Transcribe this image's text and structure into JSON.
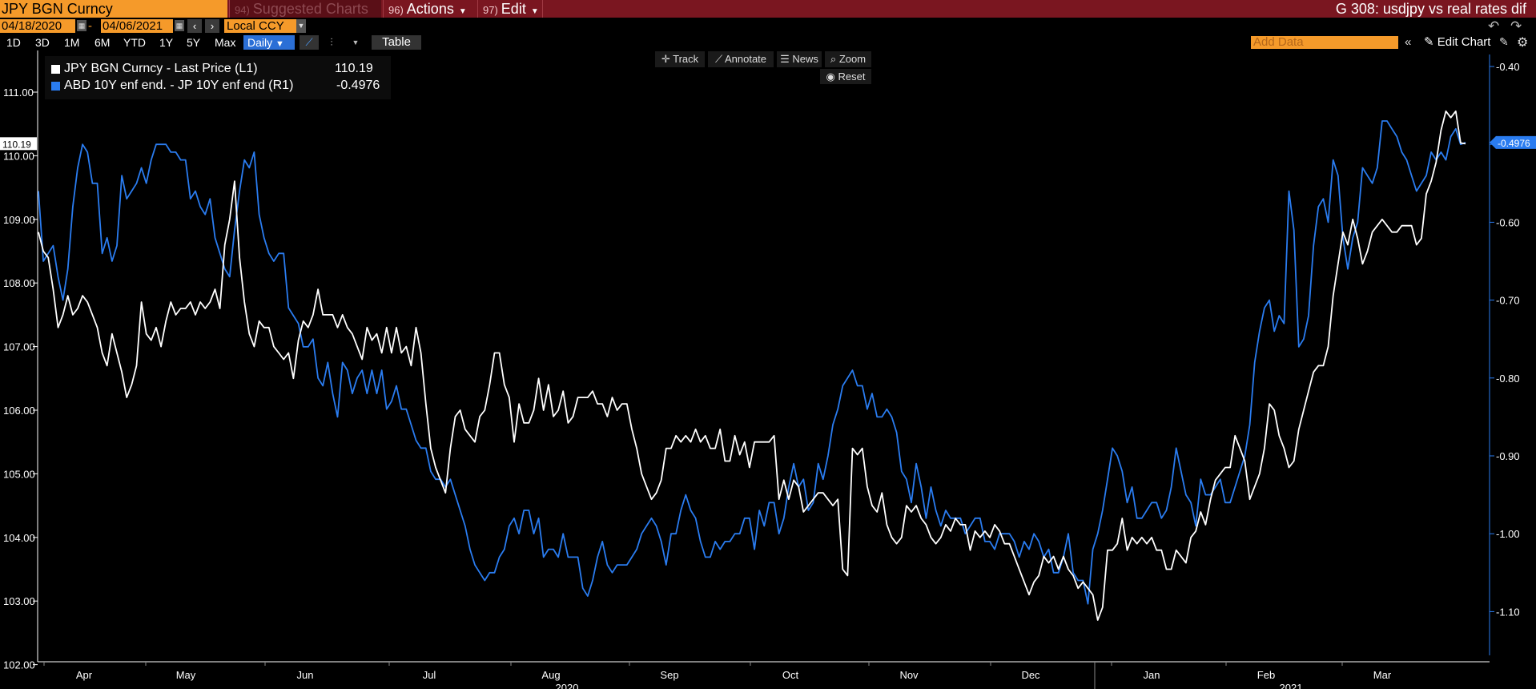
{
  "titlebar": {
    "ticker": "JPY BGN Curncy",
    "suggested": {
      "num": "94)",
      "label": "Suggested Charts"
    },
    "actions": {
      "num": "96)",
      "label": "Actions"
    },
    "edit": {
      "num": "97)",
      "label": "Edit"
    },
    "chart_title": "G 308: usdjpy vs real rates dif"
  },
  "daterow": {
    "start_date": "04/18/2020",
    "end_date": "04/06/2021",
    "currency": "Local CCY"
  },
  "toolbar": {
    "periods": [
      "1D",
      "3D",
      "1M",
      "6M",
      "YTD",
      "1Y",
      "5Y",
      "Max"
    ],
    "frequency": "Daily",
    "table_label": "Table",
    "add_data_placeholder": "Add Data",
    "edit_chart_label": "Edit Chart"
  },
  "chart_tools": {
    "track": "Track",
    "annotate": "Annotate",
    "news": "News",
    "zoom": "Zoom",
    "reset": "Reset"
  },
  "colors": {
    "series1": "#ffffff",
    "series2": "#2a7cf0",
    "background": "#000000",
    "accent_orange": "#f59a2a",
    "titlebar": "#7a1620"
  },
  "chart_data": {
    "type": "line",
    "legend_position": "top-left",
    "grid": false,
    "x_tick_labels": [
      "Apr",
      "May",
      "Jun",
      "Jul",
      "Aug",
      "Sep",
      "Oct",
      "Nov",
      "Dec",
      "Jan",
      "Feb",
      "Mar"
    ],
    "year_labels": [
      {
        "label": "2020",
        "after_month": "Aug"
      },
      {
        "label": "2021",
        "after_month": "Feb"
      }
    ],
    "left_axis": {
      "ylim": [
        102.0,
        111.0
      ],
      "ticks": [
        "102.00",
        "103.00",
        "104.00",
        "105.00",
        "106.00",
        "107.00",
        "108.00",
        "109.00",
        "110.00",
        "111.00"
      ]
    },
    "right_axis": {
      "ylim": [
        -1.155,
        -0.395
      ],
      "ticks": [
        "-1.10",
        "-1.00",
        "-0.90",
        "-0.80",
        "-0.70",
        "-0.60",
        "-0.50",
        "-0.40"
      ]
    },
    "series": [
      {
        "name": "JPY BGN Curncy - Last Price (L1)",
        "axis": "left",
        "last_value": "110.19",
        "last_label": "110.19",
        "values": [
          108.8,
          108.5,
          108.4,
          107.9,
          107.3,
          107.5,
          107.8,
          107.5,
          107.6,
          107.8,
          107.7,
          107.5,
          107.3,
          106.9,
          106.7,
          107.2,
          106.9,
          106.6,
          106.2,
          106.4,
          106.7,
          107.7,
          107.2,
          107.1,
          107.3,
          107.0,
          107.4,
          107.7,
          107.5,
          107.6,
          107.6,
          107.7,
          107.5,
          107.7,
          107.6,
          107.7,
          107.9,
          107.6,
          108.6,
          109.0,
          109.6,
          108.4,
          107.7,
          107.2,
          107.0,
          107.4,
          107.3,
          107.3,
          107.0,
          106.9,
          106.8,
          106.9,
          106.5,
          107.1,
          107.4,
          107.3,
          107.5,
          107.9,
          107.5,
          107.5,
          107.5,
          107.3,
          107.5,
          107.3,
          107.2,
          107.0,
          106.8,
          107.3,
          107.1,
          107.2,
          106.9,
          107.3,
          106.9,
          107.3,
          106.9,
          107.0,
          106.7,
          107.3,
          106.9,
          106.1,
          105.4,
          105.1,
          104.9,
          104.7,
          105.4,
          105.9,
          106.0,
          105.7,
          105.6,
          105.5,
          105.9,
          106.0,
          106.4,
          106.9,
          106.9,
          106.4,
          106.2,
          105.5,
          106.1,
          105.8,
          105.8,
          106.0,
          106.5,
          106.0,
          106.4,
          105.9,
          106.0,
          106.3,
          105.8,
          105.9,
          106.2,
          106.2,
          106.2,
          106.3,
          106.1,
          106.1,
          105.9,
          106.2,
          106.0,
          106.1,
          106.1,
          105.7,
          105.4,
          105.0,
          104.8,
          104.6,
          104.7,
          104.9,
          105.4,
          105.4,
          105.6,
          105.5,
          105.6,
          105.5,
          105.7,
          105.5,
          105.6,
          105.4,
          105.4,
          105.7,
          105.2,
          105.2,
          105.6,
          105.3,
          105.5,
          105.1,
          105.5,
          105.5,
          105.5,
          105.5,
          105.6,
          104.6,
          104.9,
          104.6,
          104.9,
          104.8,
          104.4,
          104.5,
          104.6,
          104.7,
          104.7,
          104.6,
          104.5,
          104.6,
          103.5,
          103.4,
          105.4,
          105.3,
          105.4,
          104.8,
          104.5,
          104.4,
          104.7,
          104.2,
          104.0,
          103.9,
          104.0,
          104.5,
          104.4,
          104.5,
          104.3,
          104.2,
          104.0,
          103.9,
          104.0,
          104.2,
          104.1,
          104.3,
          104.2,
          104.2,
          103.8,
          104.1,
          104.0,
          104.1,
          104.0,
          104.2,
          104.1,
          103.9,
          103.9,
          103.7,
          103.5,
          103.3,
          103.1,
          103.3,
          103.4,
          103.7,
          103.6,
          103.7,
          103.5,
          103.7,
          103.5,
          103.4,
          103.2,
          103.3,
          103.2,
          103.1,
          102.7,
          102.9,
          103.8,
          103.8,
          103.9,
          104.3,
          103.8,
          104.0,
          103.9,
          104.0,
          103.9,
          104.0,
          103.8,
          103.8,
          103.5,
          103.5,
          103.8,
          103.7,
          103.6,
          104.0,
          104.1,
          104.4,
          104.2,
          104.6,
          104.9,
          105.0,
          105.1,
          105.1,
          105.6,
          105.4,
          105.2,
          104.6,
          104.8,
          105.0,
          105.4,
          106.1,
          106.0,
          105.6,
          105.4,
          105.1,
          105.2,
          105.7,
          106.0,
          106.3,
          106.6,
          106.7,
          106.7,
          107.0,
          107.8,
          108.3,
          108.8,
          108.6,
          109.0,
          108.7,
          108.3,
          108.5,
          108.8,
          108.9,
          109.0,
          108.9,
          108.8,
          108.8,
          108.9,
          108.9,
          108.9,
          108.6,
          108.7,
          109.4,
          109.6,
          109.9,
          110.4,
          110.7,
          110.6,
          110.7,
          110.2,
          110.19
        ]
      },
      {
        "name": "ABD 10Y enf end. - JP 10Y enf end (R1)",
        "axis": "right",
        "last_value": "-0.4976",
        "last_label": "-0.4976",
        "values": [
          -0.56,
          -0.65,
          -0.64,
          -0.63,
          -0.67,
          -0.7,
          -0.66,
          -0.58,
          -0.53,
          -0.5,
          -0.51,
          -0.55,
          -0.55,
          -0.64,
          -0.62,
          -0.65,
          -0.63,
          -0.54,
          -0.57,
          -0.56,
          -0.55,
          -0.53,
          -0.55,
          -0.52,
          -0.5,
          -0.5,
          -0.5,
          -0.51,
          -0.51,
          -0.52,
          -0.52,
          -0.57,
          -0.56,
          -0.58,
          -0.59,
          -0.57,
          -0.62,
          -0.64,
          -0.66,
          -0.67,
          -0.61,
          -0.56,
          -0.52,
          -0.53,
          -0.51,
          -0.59,
          -0.62,
          -0.64,
          -0.65,
          -0.64,
          -0.64,
          -0.71,
          -0.72,
          -0.73,
          -0.76,
          -0.76,
          -0.75,
          -0.8,
          -0.81,
          -0.78,
          -0.82,
          -0.85,
          -0.78,
          -0.79,
          -0.82,
          -0.8,
          -0.79,
          -0.82,
          -0.79,
          -0.82,
          -0.79,
          -0.84,
          -0.83,
          -0.81,
          -0.84,
          -0.84,
          -0.86,
          -0.88,
          -0.89,
          -0.89,
          -0.92,
          -0.93,
          -0.93,
          -0.94,
          -0.93,
          -0.95,
          -0.97,
          -0.99,
          -1.02,
          -1.04,
          -1.05,
          -1.06,
          -1.05,
          -1.05,
          -1.03,
          -1.02,
          -0.99,
          -0.98,
          -1.0,
          -0.97,
          -0.97,
          -1.0,
          -0.98,
          -1.03,
          -1.02,
          -1.02,
          -1.03,
          -1.0,
          -1.03,
          -1.03,
          -1.03,
          -1.07,
          -1.08,
          -1.06,
          -1.03,
          -1.01,
          -1.04,
          -1.05,
          -1.04,
          -1.04,
          -1.04,
          -1.03,
          -1.02,
          -1.0,
          -0.99,
          -0.98,
          -0.99,
          -1.01,
          -1.04,
          -1.0,
          -1.0,
          -0.97,
          -0.95,
          -0.97,
          -0.98,
          -1.01,
          -1.03,
          -1.03,
          -1.01,
          -1.02,
          -1.01,
          -1.01,
          -1.0,
          -1.0,
          -0.98,
          -0.98,
          -1.02,
          -0.97,
          -0.99,
          -0.96,
          -0.96,
          -1.0,
          -0.98,
          -0.94,
          -0.91,
          -0.94,
          -0.93,
          -0.97,
          -0.96,
          -0.91,
          -0.93,
          -0.9,
          -0.86,
          -0.84,
          -0.81,
          -0.8,
          -0.79,
          -0.81,
          -0.81,
          -0.84,
          -0.82,
          -0.85,
          -0.85,
          -0.84,
          -0.85,
          -0.87,
          -0.92,
          -0.93,
          -0.96,
          -0.91,
          -0.94,
          -0.98,
          -0.94,
          -0.97,
          -0.99,
          -0.97,
          -0.98,
          -0.98,
          -0.98,
          -1.0,
          -0.99,
          -0.98,
          -0.98,
          -1.01,
          -1.01,
          -1.02,
          -1.0,
          -1.0,
          -1.0,
          -1.01,
          -1.03,
          -1.01,
          -1.02,
          -1.0,
          -1.01,
          -1.03,
          -1.02,
          -1.05,
          -1.05,
          -1.03,
          -1.0,
          -1.05,
          -1.06,
          -1.06,
          -1.09,
          -1.02,
          -1.0,
          -0.97,
          -0.93,
          -0.89,
          -0.9,
          -0.92,
          -0.96,
          -0.94,
          -0.98,
          -0.98,
          -0.97,
          -0.96,
          -0.96,
          -0.98,
          -0.97,
          -0.94,
          -0.89,
          -0.92,
          -0.95,
          -0.96,
          -0.99,
          -0.93,
          -0.95,
          -0.95,
          -0.94,
          -0.93,
          -0.96,
          -0.96,
          -0.94,
          -0.92,
          -0.9,
          -0.86,
          -0.78,
          -0.74,
          -0.71,
          -0.7,
          -0.74,
          -0.72,
          -0.73,
          -0.56,
          -0.61,
          -0.76,
          -0.75,
          -0.72,
          -0.63,
          -0.58,
          -0.57,
          -0.6,
          -0.52,
          -0.54,
          -0.62,
          -0.66,
          -0.62,
          -0.6,
          -0.53,
          -0.54,
          -0.55,
          -0.53,
          -0.47,
          -0.47,
          -0.48,
          -0.49,
          -0.51,
          -0.52,
          -0.54,
          -0.56,
          -0.55,
          -0.54,
          -0.51,
          -0.52,
          -0.51,
          -0.52,
          -0.49,
          -0.48,
          -0.5,
          -0.4976
        ]
      }
    ]
  }
}
